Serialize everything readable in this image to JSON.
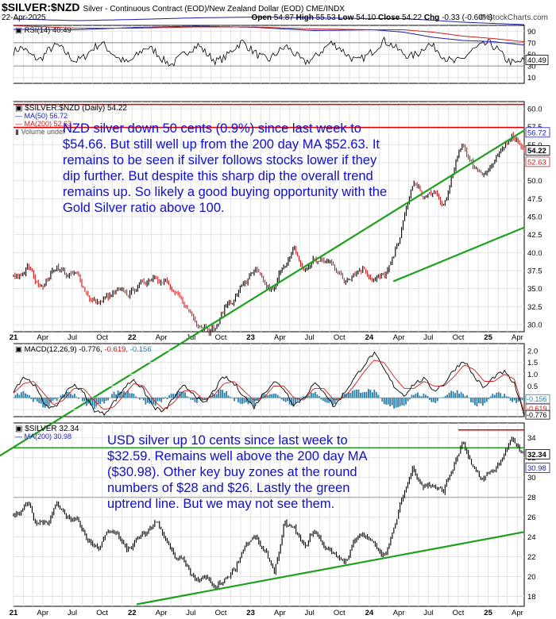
{
  "header": {
    "symbol": "$SILVER:$NZD",
    "description": "Silver - Continuous Contract (EOD)/New Zealand Dollar (EOD) CME/INDX",
    "date": "22-Apr-2025",
    "watermark": "© StockCharts.com",
    "ohlc": {
      "open_label": "Open",
      "open": "54.87",
      "high_label": "High",
      "high": "55.53",
      "low_label": "Low",
      "low": "54.10",
      "close_label": "Close",
      "close": "54.22",
      "chg_label": "Chg",
      "chg": "-0.33 (-0.60%)"
    }
  },
  "colors": {
    "rsi_line": "#000000",
    "ma50": "#1c1cb4",
    "ma200": "#c81e1e",
    "trend": "#1fa01f",
    "resistance": "#dc0000",
    "support_grey": "#b4b4b4",
    "price_up": "#000000",
    "price_down": "#c81e1e",
    "annotation": "#1010c8",
    "macd_hist": "#2a7fa8"
  },
  "panels": {
    "rsi": {
      "legend": "RSI(14) 40.49",
      "last_value_label": "40.49",
      "y_ticks": [
        "90",
        "70",
        "50",
        "30",
        "10"
      ]
    },
    "nzd": {
      "legend_main": "$SILVER:$NZD (Daily) 54.22",
      "legend_ma50": "MA(50) 56.72",
      "legend_ma200": "MA(200) 52.63",
      "legend_volume": "Volume undef",
      "y_ticks": [
        "60.0",
        "57.5",
        "55.0",
        "52.5",
        "50.0",
        "47.5",
        "45.0",
        "42.5",
        "40.0",
        "37.5",
        "35.0",
        "32.5",
        "30.0"
      ],
      "last_labels": {
        "ma50": "56.72",
        "close": "54.22",
        "ma200": "52.63"
      },
      "annotation": "NZD silver down 50 cents (0.9%) since last week to $54.66. But still well up from the 200 day MA $52.63. It remains to be seen if silver follows stocks lower if they dip further.  But despite this sharp dip the overall trend remains up. So likely a good buying opportunity with the Gold Silver ratio above 100."
    },
    "macd": {
      "legend_main": "MACD(12,26,9) -0.776,",
      "legend_signal": "-0.619,",
      "legend_hist": "-0.156",
      "y_ticks": [
        "2.0",
        "1.5",
        "1.0",
        "0.5",
        "0.0",
        "-0.5"
      ],
      "last_labels": {
        "hist": "-0.156",
        "signal": "-0.619",
        "macd": "-0.776"
      }
    },
    "usd": {
      "legend_main": "$SILVER 32.34",
      "legend_ma200": "MA(200) 30.98",
      "y_ticks": [
        "34",
        "32",
        "30",
        "28",
        "26",
        "24",
        "22",
        "20",
        "18"
      ],
      "last_labels": {
        "close": "32.34",
        "ma200": "30.98"
      },
      "annotation": "USD silver up 10 cents since last week to $32.59. Remains well above the 200 day MA ($30.98). Other key buy zones at the round numbers of $28 and $26. Lastly the green uptrend line. But we may not see them."
    }
  },
  "x_axis": {
    "labels": [
      "21",
      "Apr",
      "Jul",
      "Oct",
      "22",
      "Apr",
      "Jul",
      "Oct",
      "23",
      "Apr",
      "Jul",
      "Oct",
      "24",
      "Apr",
      "Jul",
      "Oct",
      "25",
      "Apr"
    ],
    "start": "2021-01",
    "end": "2025-04-22"
  },
  "chart_data": [
    {
      "type": "line",
      "title": "RSI(14) 40.49",
      "series": [
        {
          "name": "RSI(14)",
          "values": [
            55,
            62,
            48,
            40,
            58,
            66,
            52,
            38,
            45,
            60,
            70,
            55,
            42,
            35,
            48,
            62,
            57,
            40,
            32,
            46,
            58,
            66,
            50,
            38,
            44,
            60,
            72,
            58,
            46,
            40,
            54,
            64,
            50,
            36,
            42,
            56,
            70,
            62,
            48,
            38,
            46,
            58,
            74,
            66,
            54,
            46,
            52,
            68,
            60,
            44,
            36,
            42,
            56,
            64,
            70,
            58,
            40,
            34,
            40.49
          ]
        }
      ],
      "ylim": [
        0,
        100
      ],
      "reference_lines": [
        70,
        50,
        30
      ]
    },
    {
      "type": "line",
      "title": "$SILVER:$NZD (Daily) 54.22",
      "x_range": [
        "2021-01",
        "2025-04-22"
      ],
      "ylim": [
        29,
        61
      ],
      "series": [
        {
          "name": "$SILVER:$NZD",
          "x": [
            "2021-01",
            "2021-02",
            "2021-03",
            "2021-04",
            "2021-05",
            "2021-06",
            "2021-07",
            "2021-08",
            "2021-09",
            "2021-10",
            "2021-11",
            "2021-12",
            "2022-01",
            "2022-02",
            "2022-03",
            "2022-04",
            "2022-05",
            "2022-06",
            "2022-07",
            "2022-08",
            "2022-09",
            "2022-10",
            "2022-11",
            "2022-12",
            "2023-01",
            "2023-02",
            "2023-03",
            "2023-04",
            "2023-05",
            "2023-06",
            "2023-07",
            "2023-08",
            "2023-09",
            "2023-10",
            "2023-11",
            "2023-12",
            "2024-01",
            "2024-02",
            "2024-03",
            "2024-04",
            "2024-05",
            "2024-06",
            "2024-07",
            "2024-08",
            "2024-09",
            "2024-10",
            "2024-11",
            "2024-12",
            "2025-01",
            "2025-02",
            "2025-03",
            "2025-04",
            "2025-04-22"
          ],
          "values": [
            36.5,
            38.0,
            35.5,
            36.5,
            38.5,
            37.0,
            36.5,
            34.5,
            33.0,
            33.5,
            34.0,
            33.5,
            35.0,
            36.0,
            37.5,
            36.5,
            33.5,
            32.0,
            30.5,
            30.5,
            30.0,
            32.5,
            34.0,
            36.0,
            37.0,
            34.5,
            34.0,
            38.5,
            40.0,
            37.0,
            39.0,
            38.5,
            38.5,
            36.0,
            38.0,
            38.5,
            37.0,
            36.5,
            38.5,
            44.0,
            49.5,
            47.5,
            48.0,
            46.0,
            50.5,
            55.0,
            52.0,
            51.5,
            52.5,
            53.5,
            56.5,
            55.5,
            54.22
          ]
        },
        {
          "name": "MA(50)",
          "x": [
            "2021-01",
            "2021-07",
            "2022-01",
            "2022-07",
            "2023-01",
            "2023-07",
            "2024-01",
            "2024-04",
            "2024-07",
            "2024-10",
            "2025-01",
            "2025-04-22"
          ],
          "values": [
            37.0,
            37.5,
            34.5,
            33.0,
            34.5,
            38.5,
            37.5,
            40.5,
            47.0,
            51.0,
            52.5,
            56.72
          ]
        },
        {
          "name": "MA(200)",
          "x": [
            "2021-01",
            "2021-07",
            "2022-01",
            "2022-07",
            "2023-01",
            "2023-07",
            "2024-01",
            "2024-04",
            "2024-07",
            "2024-10",
            "2025-01",
            "2025-04-22"
          ],
          "values": [
            32.5,
            35.5,
            35.5,
            34.0,
            34.0,
            36.5,
            37.5,
            37.5,
            40.5,
            45.5,
            48.5,
            52.63
          ]
        }
      ],
      "trendline": {
        "from": [
          "2022-08",
          29.5
        ],
        "to": [
          "2025-04-22",
          57.0
        ]
      },
      "support_line": {
        "from": [
          "2024-03",
          36.0
        ],
        "to": [
          "2025-04-22",
          43.5
        ]
      },
      "resistance_lines": [
        60.6,
        57.4
      ]
    },
    {
      "type": "line",
      "title": "MACD(12,26,9) -0.776, -0.619, -0.156",
      "ylim": [
        -0.8,
        2.3
      ],
      "series": [
        {
          "name": "MACD",
          "values": [
            0.3,
            0.9,
            0.6,
            -0.2,
            -0.5,
            0.1,
            0.6,
            0.2,
            -0.5,
            -0.7,
            -0.2,
            0.4,
            0.8,
            0.3,
            -0.4,
            -0.6,
            0.0,
            0.5,
            0.2,
            -0.3,
            0.3,
            0.9,
            0.6,
            0.1,
            -0.4,
            0.2,
            0.7,
            0.4,
            -0.3,
            0.0,
            0.6,
            0.3,
            -0.4,
            0.2,
            0.8,
            1.4,
            1.9,
            1.2,
            0.5,
            0.1,
            0.6,
            0.8,
            0.3,
            0.6,
            1.2,
            1.6,
            0.9,
            0.4,
            0.9,
            1.1,
            0.6,
            -0.776
          ]
        },
        {
          "name": "Signal",
          "values": [
            0.2,
            0.6,
            0.7,
            0.2,
            -0.3,
            -0.1,
            0.4,
            0.4,
            -0.1,
            -0.5,
            -0.4,
            0.1,
            0.6,
            0.5,
            -0.1,
            -0.5,
            -0.2,
            0.3,
            0.3,
            -0.1,
            0.1,
            0.6,
            0.7,
            0.3,
            -0.1,
            0.0,
            0.5,
            0.5,
            0.0,
            -0.1,
            0.4,
            0.4,
            -0.1,
            0.0,
            0.5,
            1.1,
            1.6,
            1.5,
            0.9,
            0.4,
            0.4,
            0.7,
            0.5,
            0.5,
            0.9,
            1.4,
            1.2,
            0.7,
            0.7,
            1.0,
            0.8,
            -0.619
          ]
        }
      ]
    },
    {
      "type": "line",
      "title": "$SILVER 32.34",
      "x_range": [
        "2021-01",
        "2025-04-22"
      ],
      "ylim": [
        17,
        35.5
      ],
      "series": [
        {
          "name": "$SILVER",
          "x": [
            "2021-01",
            "2021-02",
            "2021-03",
            "2021-04",
            "2021-05",
            "2021-06",
            "2021-07",
            "2021-08",
            "2021-09",
            "2021-10",
            "2021-11",
            "2021-12",
            "2022-01",
            "2022-02",
            "2022-03",
            "2022-04",
            "2022-05",
            "2022-06",
            "2022-07",
            "2022-08",
            "2022-09",
            "2022-10",
            "2022-11",
            "2022-12",
            "2023-01",
            "2023-02",
            "2023-03",
            "2023-04",
            "2023-05",
            "2023-06",
            "2023-07",
            "2023-08",
            "2023-09",
            "2023-10",
            "2023-11",
            "2023-12",
            "2024-01",
            "2024-02",
            "2024-03",
            "2024-04",
            "2024-05",
            "2024-06",
            "2024-07",
            "2024-08",
            "2024-09",
            "2024-10",
            "2024-11",
            "2024-12",
            "2025-01",
            "2025-02",
            "2025-03",
            "2025-04",
            "2025-04-22"
          ],
          "values": [
            26.5,
            28.0,
            25.5,
            25.5,
            27.5,
            26.0,
            25.5,
            23.5,
            22.5,
            24.0,
            24.5,
            22.5,
            23.5,
            24.0,
            25.5,
            24.0,
            21.5,
            21.0,
            19.0,
            19.5,
            18.5,
            19.5,
            21.0,
            23.5,
            24.0,
            22.0,
            20.5,
            25.0,
            24.5,
            22.5,
            24.5,
            23.0,
            22.5,
            21.5,
            23.5,
            24.0,
            23.0,
            22.5,
            24.5,
            28.0,
            31.0,
            29.5,
            29.5,
            28.5,
            31.0,
            33.5,
            30.5,
            29.5,
            30.5,
            32.0,
            33.5,
            32.0,
            32.34
          ]
        },
        {
          "name": "MA(200)",
          "x": [
            "2021-01",
            "2021-07",
            "2022-01",
            "2022-07",
            "2023-01",
            "2023-07",
            "2024-01",
            "2024-04",
            "2024-07",
            "2024-10",
            "2025-01",
            "2025-04-22"
          ],
          "values": [
            24.0,
            26.0,
            24.5,
            22.5,
            21.5,
            22.5,
            23.5,
            23.5,
            25.5,
            28.0,
            29.5,
            30.98
          ]
        }
      ],
      "trendline": {
        "from": [
          "2022-01",
          17.2
        ],
        "to": [
          "2025-04-22",
          24.5
        ]
      },
      "support_lines": [
        28
      ],
      "resistance_lines": [
        34.8,
        33.0
      ]
    }
  ]
}
